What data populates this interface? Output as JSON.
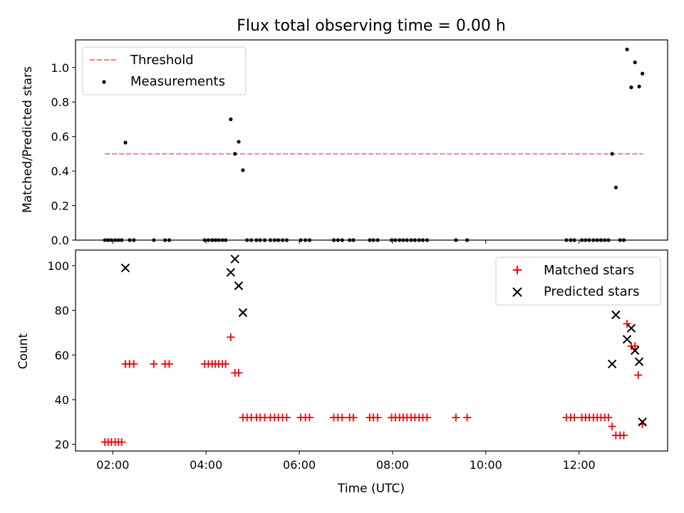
{
  "figure": {
    "title": "Flux total observing time = 0.00 h"
  },
  "colors": {
    "threshold": "#ff7f7f",
    "measurements": "#000000",
    "matched": "#ff0000",
    "predicted": "#000000"
  },
  "chart_data": [
    {
      "type": "scatter",
      "panel": "top",
      "ylabel": "Matched/Predicted stars",
      "xlabel": "",
      "xlim": [
        1.2,
        13.9
      ],
      "ylim": [
        0,
        1.16
      ],
      "yticks": [
        0.0,
        0.2,
        0.4,
        0.6,
        0.8,
        1.0
      ],
      "ytick_labels": [
        "0.0",
        "0.2",
        "0.4",
        "0.6",
        "0.8",
        "1.0"
      ],
      "xticks": [
        2,
        4,
        6,
        8,
        10,
        12
      ],
      "legend_position": "upper-left",
      "threshold": {
        "name": "Threshold",
        "y": 0.5,
        "x": [
          1.83,
          13.37
        ],
        "style": "dashed"
      },
      "series": [
        {
          "name": "Measurements",
          "marker": "dot",
          "points": [
            [
              1.83,
              0
            ],
            [
              1.9,
              0
            ],
            [
              1.97,
              0
            ],
            [
              2.05,
              0
            ],
            [
              2.12,
              0
            ],
            [
              2.19,
              0
            ],
            [
              2.27,
              0.565
            ],
            [
              2.36,
              0
            ],
            [
              2.45,
              0
            ],
            [
              2.88,
              0
            ],
            [
              3.12,
              0
            ],
            [
              3.21,
              0
            ],
            [
              3.97,
              0
            ],
            [
              4.05,
              0
            ],
            [
              4.13,
              0
            ],
            [
              4.2,
              0
            ],
            [
              4.27,
              0
            ],
            [
              4.35,
              0
            ],
            [
              4.42,
              0
            ],
            [
              4.53,
              0.7
            ],
            [
              4.62,
              0.5
            ],
            [
              4.7,
              0.57
            ],
            [
              4.79,
              0.405
            ],
            [
              4.88,
              0
            ],
            [
              4.97,
              0
            ],
            [
              5.08,
              0
            ],
            [
              5.16,
              0
            ],
            [
              5.26,
              0
            ],
            [
              5.38,
              0
            ],
            [
              5.47,
              0
            ],
            [
              5.55,
              0
            ],
            [
              5.64,
              0
            ],
            [
              5.73,
              0
            ],
            [
              6.03,
              0
            ],
            [
              6.13,
              0
            ],
            [
              6.22,
              0
            ],
            [
              6.74,
              0
            ],
            [
              6.83,
              0
            ],
            [
              6.92,
              0
            ],
            [
              7.08,
              0
            ],
            [
              7.16,
              0
            ],
            [
              7.51,
              0
            ],
            [
              7.59,
              0
            ],
            [
              7.68,
              0
            ],
            [
              7.98,
              0
            ],
            [
              8.06,
              0
            ],
            [
              8.15,
              0
            ],
            [
              8.23,
              0
            ],
            [
              8.31,
              0
            ],
            [
              8.4,
              0
            ],
            [
              8.48,
              0
            ],
            [
              8.57,
              0
            ],
            [
              8.65,
              0
            ],
            [
              8.74,
              0
            ],
            [
              9.36,
              0
            ],
            [
              9.6,
              0
            ],
            [
              11.73,
              0
            ],
            [
              11.82,
              0
            ],
            [
              11.9,
              0
            ],
            [
              12.06,
              0
            ],
            [
              12.14,
              0
            ],
            [
              12.22,
              0
            ],
            [
              12.31,
              0
            ],
            [
              12.39,
              0
            ],
            [
              12.47,
              0
            ],
            [
              12.55,
              0
            ],
            [
              12.63,
              0
            ],
            [
              12.71,
              0.5
            ],
            [
              12.79,
              0.305
            ],
            [
              12.88,
              0
            ],
            [
              12.96,
              0
            ],
            [
              13.03,
              1.105
            ],
            [
              13.12,
              0.885
            ],
            [
              13.2,
              1.03
            ],
            [
              13.29,
              0.89
            ],
            [
              13.36,
              0.965
            ]
          ]
        }
      ]
    },
    {
      "type": "scatter",
      "panel": "bottom",
      "xlabel": "Time (UTC)",
      "ylabel": "Count",
      "xlim": [
        1.2,
        13.9
      ],
      "ylim": [
        17,
        107
      ],
      "yticks": [
        20,
        40,
        60,
        80,
        100
      ],
      "ytick_labels": [
        "20",
        "40",
        "60",
        "80",
        "100"
      ],
      "xticks": [
        2,
        4,
        6,
        8,
        10,
        12
      ],
      "xtick_labels": [
        "02:00",
        "04:00",
        "06:00",
        "08:00",
        "10:00",
        "12:00"
      ],
      "legend_position": "upper-right",
      "series": [
        {
          "name": "Matched stars",
          "marker": "plus",
          "points": [
            [
              1.83,
              21
            ],
            [
              1.9,
              21
            ],
            [
              1.97,
              21
            ],
            [
              2.05,
              21
            ],
            [
              2.12,
              21
            ],
            [
              2.19,
              21
            ],
            [
              2.27,
              56
            ],
            [
              2.36,
              56
            ],
            [
              2.45,
              56
            ],
            [
              2.88,
              56
            ],
            [
              3.12,
              56
            ],
            [
              3.21,
              56
            ],
            [
              3.97,
              56
            ],
            [
              4.05,
              56
            ],
            [
              4.13,
              56
            ],
            [
              4.2,
              56
            ],
            [
              4.27,
              56
            ],
            [
              4.35,
              56
            ],
            [
              4.42,
              56
            ],
            [
              4.53,
              68
            ],
            [
              4.62,
              52
            ],
            [
              4.7,
              52
            ],
            [
              4.79,
              32
            ],
            [
              4.88,
              32
            ],
            [
              4.97,
              32
            ],
            [
              5.08,
              32
            ],
            [
              5.16,
              32
            ],
            [
              5.26,
              32
            ],
            [
              5.38,
              32
            ],
            [
              5.47,
              32
            ],
            [
              5.55,
              32
            ],
            [
              5.64,
              32
            ],
            [
              5.73,
              32
            ],
            [
              6.03,
              32
            ],
            [
              6.13,
              32
            ],
            [
              6.22,
              32
            ],
            [
              6.74,
              32
            ],
            [
              6.83,
              32
            ],
            [
              6.92,
              32
            ],
            [
              7.08,
              32
            ],
            [
              7.16,
              32
            ],
            [
              7.51,
              32
            ],
            [
              7.59,
              32
            ],
            [
              7.68,
              32
            ],
            [
              7.98,
              32
            ],
            [
              8.06,
              32
            ],
            [
              8.15,
              32
            ],
            [
              8.23,
              32
            ],
            [
              8.31,
              32
            ],
            [
              8.4,
              32
            ],
            [
              8.48,
              32
            ],
            [
              8.57,
              32
            ],
            [
              8.65,
              32
            ],
            [
              8.74,
              32
            ],
            [
              9.36,
              32
            ],
            [
              9.6,
              32
            ],
            [
              11.73,
              32
            ],
            [
              11.82,
              32
            ],
            [
              11.9,
              32
            ],
            [
              12.06,
              32
            ],
            [
              12.14,
              32
            ],
            [
              12.22,
              32
            ],
            [
              12.31,
              32
            ],
            [
              12.39,
              32
            ],
            [
              12.47,
              32
            ],
            [
              12.55,
              32
            ],
            [
              12.63,
              32
            ],
            [
              12.71,
              28
            ],
            [
              12.79,
              24
            ],
            [
              12.88,
              24
            ],
            [
              12.96,
              24
            ],
            [
              13.03,
              74
            ],
            [
              13.12,
              64
            ],
            [
              13.2,
              64
            ],
            [
              13.27,
              51
            ],
            [
              13.36,
              29
            ]
          ]
        },
        {
          "name": "Predicted stars",
          "marker": "x",
          "points": [
            [
              2.27,
              99
            ],
            [
              4.53,
              97
            ],
            [
              4.62,
              103
            ],
            [
              4.7,
              91
            ],
            [
              4.79,
              79
            ],
            [
              12.71,
              56
            ],
            [
              12.79,
              78
            ],
            [
              13.03,
              67
            ],
            [
              13.12,
              72
            ],
            [
              13.2,
              62
            ],
            [
              13.29,
              57
            ],
            [
              13.36,
              30
            ]
          ]
        }
      ]
    }
  ]
}
